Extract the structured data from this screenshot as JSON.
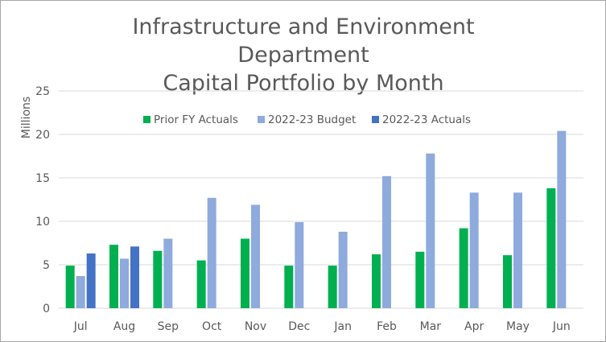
{
  "chart_data": {
    "type": "bar",
    "title": [
      "Infrastructure and Environment",
      "Department",
      "Capital Portfolio by Month"
    ],
    "xlabel": "",
    "ylabel": "Millions",
    "ylim": [
      0,
      25
    ],
    "yticks": [
      0,
      5,
      10,
      15,
      20,
      25
    ],
    "grid": true,
    "legend_position": "top",
    "categories": [
      "Jul",
      "Aug",
      "Sep",
      "Oct",
      "Nov",
      "Dec",
      "Jan",
      "Feb",
      "Mar",
      "Apr",
      "May",
      "Jun"
    ],
    "series": [
      {
        "name": "Prior FY Actuals",
        "color": "#00b050",
        "values": [
          4.9,
          7.3,
          6.6,
          5.5,
          8.0,
          4.9,
          4.9,
          6.2,
          6.5,
          9.2,
          6.1,
          13.8
        ]
      },
      {
        "name": "2022-23 Budget",
        "color": "#8faadc",
        "values": [
          3.7,
          5.7,
          8.0,
          12.7,
          11.9,
          9.9,
          8.8,
          15.2,
          17.8,
          13.3,
          13.3,
          20.4
        ]
      },
      {
        "name": "2022-23 Actuals",
        "color": "#4472c4",
        "values": [
          6.3,
          7.1,
          null,
          null,
          null,
          null,
          null,
          null,
          null,
          null,
          null,
          null
        ]
      }
    ]
  }
}
